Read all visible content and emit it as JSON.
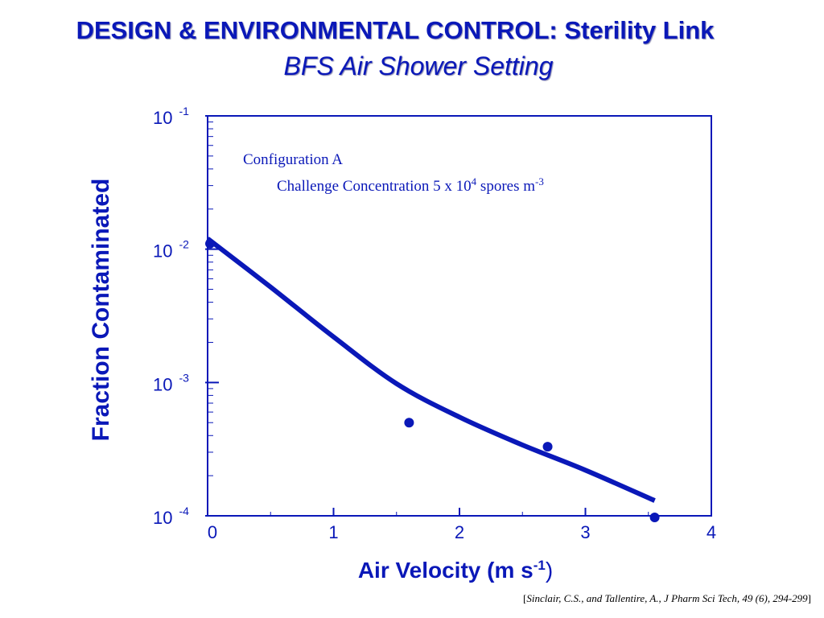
{
  "header": {
    "title": "DESIGN & ENVIRONMENTAL CONTROL: Sterility Link",
    "subtitle": "BFS Air Shower Setting"
  },
  "chart_data": {
    "type": "scatter",
    "title": "",
    "xlabel": "Air Velocity (m s",
    "xlabel_sup": "-1",
    "xlabel_suffix": ")",
    "ylabel": "Fraction Contaminated",
    "xlim": [
      0,
      4
    ],
    "ylim": [
      0.0001,
      0.1
    ],
    "yscale": "log",
    "x_ticks": [
      "0",
      "1",
      "2",
      "3",
      "4"
    ],
    "y_ticks": [
      {
        "base": "10",
        "exp": "-1",
        "value": 0.1
      },
      {
        "base": "10",
        "exp": "-2",
        "value": 0.01
      },
      {
        "base": "10",
        "exp": "-3",
        "value": 0.001
      },
      {
        "base": "10",
        "exp": "-4",
        "value": 0.0001
      }
    ],
    "grid": false,
    "annotation": {
      "line1": "Configuration A",
      "line2_prefix": "Challenge Concentration 5 x 10",
      "line2_sup1": "4",
      "line2_middle": " spores m",
      "line2_sup2": "-3"
    },
    "series": [
      {
        "type": "scatter",
        "x": [
          0.0,
          1.6,
          2.7,
          3.55
        ],
        "y": [
          0.011,
          0.0005,
          0.00033,
          0.0001
        ]
      },
      {
        "type": "line",
        "x": [
          0.0,
          0.5,
          1.0,
          1.5,
          2.0,
          2.5,
          3.0,
          3.55
        ],
        "y": [
          0.012,
          0.0052,
          0.0022,
          0.00098,
          0.00055,
          0.00034,
          0.00022,
          0.00013
        ]
      }
    ],
    "colors": {
      "axis": "#0a18b8",
      "data": "#0a18b8"
    }
  },
  "citation": {
    "open": "[",
    "text": "Sinclair, C.S.,  and Tallentire, A., J Pharm Sci Tech, 49 (6), 294-299",
    "close": "]"
  }
}
